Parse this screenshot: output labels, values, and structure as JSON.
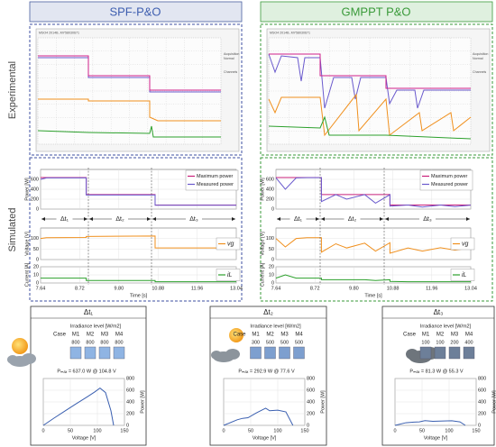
{
  "headers": [
    "SPF-P&O",
    "GMPPT P&O"
  ],
  "row_labels": [
    "Experimental",
    "Simulated"
  ],
  "scope_left": [
    "MSO4 2014B, MY58030671",
    "Acquisition",
    "Normal",
    "Channels"
  ],
  "scope_right": [
    "MSO4 2014B, MY58030671",
    "Acquisition",
    "Normal",
    "Channels"
  ],
  "intervals_left": [
    "Δt₁",
    "Δt₂",
    "Δt₃"
  ],
  "intervals_right": [
    "Δt₁",
    "Δt₂",
    "Δt₃"
  ],
  "insets": [
    {
      "title": "Δt₁",
      "irradiance": "Irradiance level [W/m2]",
      "header": [
        "Case",
        "M1",
        "M2",
        "M3",
        "M4"
      ],
      "values": [
        800,
        800,
        800,
        800
      ],
      "pmax": "Pₘₐₓ = 637.0 W @ 104.8 V"
    },
    {
      "title": "Δt₂",
      "irradiance": "Irradiance level [W/m2]",
      "header": [
        "Case",
        "M1",
        "M2",
        "M3",
        "M4"
      ],
      "values": [
        300,
        500,
        500,
        500
      ],
      "pmax": "Pₘₐₓ = 292.9 W @ 77.6 V"
    },
    {
      "title": "Δt₃",
      "irradiance": "Irradiance level [W/m2]",
      "header": [
        "Case",
        "M1",
        "M2",
        "M3",
        "M4"
      ],
      "values": [
        100,
        100,
        200,
        400
      ],
      "pmax": "Pₘₐₓ = 81.3 W @ 55.3 V"
    }
  ],
  "chart_data": [
    {
      "type": "line",
      "ylabel": "Power [W]",
      "x": [
        7.64,
        7.8,
        8.9,
        8.9,
        10.8,
        10.8,
        13.04
      ],
      "xlim": [
        7.64,
        13.04
      ],
      "xticks": [
        7.64,
        8.72,
        9.8,
        10.88,
        11.96,
        13.04
      ],
      "ylim": [
        0,
        800
      ],
      "yticks": [
        0,
        200,
        400,
        600
      ],
      "grid": true,
      "legend": "upper right",
      "series": [
        {
          "name": "Maximum power",
          "color": "#c8207a",
          "values": [
            637,
            637,
            637,
            292.9,
            292.9,
            81.3,
            81.3
          ]
        },
        {
          "name": "Measured power",
          "color": "#6a5acd",
          "values": [
            600,
            630,
            630,
            285,
            285,
            78,
            78
          ]
        }
      ]
    },
    {
      "type": "line",
      "ylabel": "Voltage [V]",
      "x": [
        7.64,
        7.8,
        8.9,
        8.9,
        10.8,
        10.8,
        13.04
      ],
      "xlim": [
        7.64,
        13.04
      ],
      "xticks": [
        7.64,
        8.72,
        9.8,
        10.88,
        11.96,
        13.04
      ],
      "ylim": [
        0,
        150
      ],
      "yticks": [
        0,
        50,
        100
      ],
      "grid": true,
      "legend": "right",
      "series": [
        {
          "name": "vg",
          "color": "#f0901e",
          "values": [
            100,
            104,
            104.8,
            110,
            112,
            55,
            55
          ]
        }
      ]
    },
    {
      "type": "line",
      "ylabel": "Current [A]",
      "xlabel": "Time [s]",
      "x": [
        7.64,
        7.8,
        8.9,
        8.9,
        10.8,
        10.8,
        13.04
      ],
      "xlim": [
        7.64,
        13.04
      ],
      "xticks": [
        7.64,
        8.72,
        {
          "value": 9.8,
          "label": "9.80"
        },
        10.88,
        11.96,
        13.04
      ],
      "ylim": [
        0,
        20
      ],
      "yticks": [
        0,
        10,
        20
      ],
      "grid": true,
      "legend": "right",
      "series": [
        {
          "name": "iL",
          "color": "#2ca02c",
          "values": [
            6,
            6,
            6,
            3,
            3,
            1.5,
            1.5
          ]
        }
      ]
    },
    {
      "type": "line",
      "ylabel": "Power [W]",
      "x": [
        7.64,
        7.9,
        8.2,
        8.5,
        8.9,
        8.9,
        9.3,
        9.6,
        10.1,
        10.4,
        10.8,
        10.8,
        11.3,
        11.7,
        12.2,
        12.6,
        13.04
      ],
      "xlim": [
        7.64,
        13.04
      ],
      "xticks": [
        7.64,
        8.72,
        9.8,
        10.88,
        11.96,
        13.04
      ],
      "ylim": [
        0,
        800
      ],
      "yticks": [
        0,
        200,
        400,
        600
      ],
      "grid": true,
      "legend": "upper right",
      "series": [
        {
          "name": "Maximum power",
          "color": "#c8207a",
          "values": [
            637,
            637,
            637,
            637,
            637,
            292.9,
            292.9,
            292.9,
            292.9,
            292.9,
            292.9,
            81.3,
            81.3,
            81.3,
            81.3,
            81.3,
            81.3
          ]
        },
        {
          "name": "Measured power",
          "color": "#6a5acd",
          "values": [
            630,
            400,
            630,
            635,
            635,
            150,
            292,
            200,
            292,
            120,
            290,
            60,
            81,
            40,
            81,
            50,
            80
          ]
        }
      ]
    },
    {
      "type": "line",
      "ylabel": "Voltage [V]",
      "x": [
        7.64,
        7.9,
        8.2,
        8.5,
        8.9,
        8.9,
        9.3,
        9.6,
        10.1,
        10.4,
        10.8,
        10.8,
        11.3,
        11.7,
        12.2,
        12.6,
        13.04
      ],
      "xlim": [
        7.64,
        13.04
      ],
      "xticks": [
        7.64,
        8.72,
        9.8,
        10.88,
        11.96,
        13.04
      ],
      "ylim": [
        0,
        150
      ],
      "yticks": [
        0,
        50,
        100
      ],
      "grid": true,
      "legend": "right",
      "series": [
        {
          "name": "vg",
          "color": "#f0901e",
          "values": [
            100,
            60,
            100,
            104,
            104,
            35,
            75,
            55,
            78,
            40,
            80,
            30,
            55,
            40,
            56,
            45,
            55
          ]
        }
      ]
    },
    {
      "type": "line",
      "ylabel": "Current [A]",
      "xlabel": "Time [s]",
      "x": [
        7.64,
        7.9,
        8.2,
        8.5,
        8.9,
        8.9,
        9.3,
        9.6,
        10.1,
        10.4,
        10.8,
        10.8,
        11.3,
        11.7,
        12.2,
        12.6,
        13.04
      ],
      "xlim": [
        7.64,
        13.04
      ],
      "xticks": [
        7.64,
        8.72,
        {
          "value": 9.8,
          "label": "9.80"
        },
        10.88,
        11.96,
        13.04
      ],
      "ylim": [
        0,
        20
      ],
      "yticks": [
        0,
        10,
        20
      ],
      "grid": true,
      "legend": "right",
      "series": [
        {
          "name": "iL",
          "color": "#2ca02c",
          "values": [
            6,
            10,
            6,
            6,
            6,
            4,
            4,
            4,
            4,
            3,
            4,
            2,
            1.5,
            1.5,
            1.5,
            1.5,
            1.5
          ]
        }
      ]
    },
    {
      "type": "line",
      "ylabel": "Power [W]",
      "xlabel": "Voltage [V]",
      "yaxis": "right",
      "x": [
        0,
        20,
        40,
        60,
        80,
        95,
        104.8,
        115,
        125,
        130
      ],
      "xlim": [
        0,
        150
      ],
      "xticks": [
        0,
        50,
        100,
        150
      ],
      "ylim": [
        0,
        800
      ],
      "yticks": [
        0,
        200,
        400,
        600,
        800
      ],
      "grid": true,
      "series": [
        {
          "color": "#3a5fb0",
          "values": [
            0,
            125,
            245,
            365,
            480,
            570,
            637,
            560,
            250,
            0
          ]
        }
      ]
    },
    {
      "type": "line",
      "ylabel": "Power [W]",
      "xlabel": "Voltage [V]",
      "yaxis": "right",
      "x": [
        0,
        25,
        35,
        45,
        60,
        77.6,
        85,
        100,
        115,
        128
      ],
      "xlim": [
        0,
        150
      ],
      "xticks": [
        0,
        50,
        100,
        150
      ],
      "ylim": [
        0,
        800
      ],
      "yticks": [
        0,
        200,
        400,
        600,
        800
      ],
      "grid": true,
      "series": [
        {
          "color": "#3a5fb0",
          "values": [
            0,
            95,
            120,
            130,
            210,
            292.9,
            250,
            260,
            230,
            0
          ]
        }
      ]
    },
    {
      "type": "line",
      "ylabel": "Power [W]",
      "xlabel": "Voltage [V]",
      "yaxis": "right",
      "x": [
        0,
        20,
        35,
        45,
        55.3,
        70,
        90,
        105,
        120,
        130
      ],
      "xlim": [
        0,
        150
      ],
      "xticks": [
        0,
        50,
        100,
        150
      ],
      "ylim": [
        0,
        800
      ],
      "yticks": [
        0,
        200,
        400,
        600,
        800
      ],
      "grid": true,
      "series": [
        {
          "color": "#3a5fb0",
          "values": [
            0,
            45,
            55,
            60,
            81.3,
            70,
            75,
            78,
            60,
            0
          ]
        }
      ]
    }
  ]
}
